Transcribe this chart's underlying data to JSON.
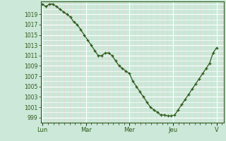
{
  "background_color": "#cce8d8",
  "grid_major_color": "#ffffff",
  "grid_minor_color": "#e8d0d0",
  "line_color": "#2d5a1b",
  "marker_color": "#2d5a1b",
  "yticks": [
    999,
    1001,
    1003,
    1005,
    1007,
    1009,
    1011,
    1013,
    1015,
    1017,
    1019
  ],
  "ylim": [
    998.0,
    1021.5
  ],
  "xtick_labels": [
    "Lun",
    "Mar",
    "Mer",
    "Jeu",
    "V"
  ],
  "xtick_positions": [
    0,
    24,
    48,
    72,
    96
  ],
  "xlim": [
    -1,
    100
  ],
  "y_values": [
    1021.0,
    1020.5,
    1021.0,
    1021.0,
    1020.5,
    1020.0,
    1019.5,
    1019.0,
    1018.5,
    1017.5,
    1017.0,
    1016.0,
    1015.0,
    1014.0,
    1013.0,
    1012.0,
    1011.0,
    1011.0,
    1011.5,
    1011.5,
    1011.0,
    1010.0,
    1009.0,
    1008.5,
    1008.0,
    1007.5,
    1006.0,
    1005.0,
    1004.0,
    1003.0,
    1002.0,
    1001.0,
    1000.5,
    1000.0,
    999.5,
    999.5,
    999.3,
    999.3,
    999.5,
    1000.5,
    1001.5,
    1002.5,
    1003.5,
    1004.5,
    1005.5,
    1006.5,
    1007.5,
    1008.5,
    1009.5,
    1011.5,
    1012.5
  ],
  "vline_color": "#2d5a1b",
  "tick_color": "#2d5a1b",
  "spine_color": "#2d5a1b"
}
